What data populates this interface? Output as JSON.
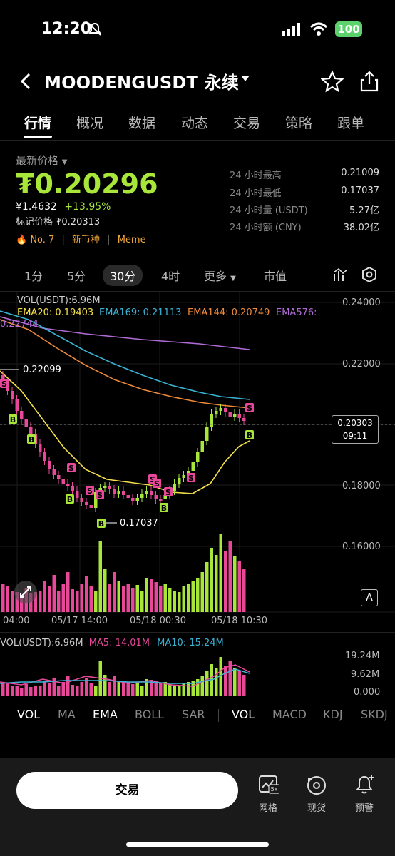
{
  "status": {
    "time": "12:20",
    "battery": "100"
  },
  "header": {
    "title": "MOODENGUSDT 永续"
  },
  "tabs": [
    "行情",
    "概况",
    "数据",
    "动态",
    "交易",
    "策略",
    "跟单"
  ],
  "price": {
    "label": "最新价格",
    "value": "₮0.20296",
    "cny": "¥1.4632",
    "change": "+13.95%",
    "mark": "标记价格 ₮0.20313",
    "rank": "No. 7",
    "tag1": "新币种",
    "tag2": "Meme"
  },
  "stats": [
    {
      "label": "24 小时最高",
      "value": "0.21009"
    },
    {
      "label": "24 小时最低",
      "value": "0.17037"
    },
    {
      "label": "24 小时量 (USDT)",
      "value": "5.27亿"
    },
    {
      "label": "24 小时额 (CNY)",
      "value": "38.02亿"
    }
  ],
  "intervals": {
    "i1": "1分",
    "i5": "5分",
    "i30": "30分",
    "i4h": "4时",
    "more": "更多",
    "mcap": "市值"
  },
  "chart": {
    "vol_label": "VOL(USDT):6.96M",
    "ema20": "EMA20: 0.19403",
    "ema169": "EMA169: 0.21113",
    "ema144": "EMA144: 0.20749",
    "ema576": "EMA576:",
    "ema576_val": "0.22744",
    "high_label": "0.22099",
    "low_label": "0.17037",
    "current_price": "0.20303",
    "countdown": "09:11",
    "y_ticks": [
      "0.24000",
      "0.22000",
      "0.20000",
      "0.18000",
      "0.16000"
    ],
    "x_ticks": [
      "04:00",
      "05/17 14:00",
      "05/18 00:30",
      "05/18 10:30"
    ],
    "vol_panel_label": "VOL(USDT):6.96M",
    "ma5": "MA5: 14.01M",
    "ma10": "MA10: 15.24M",
    "vol_ticks": [
      "19.24M",
      "9.62M",
      "0.000"
    ],
    "buy": "B",
    "sell": "S",
    "annot_box": "A"
  },
  "indicators": [
    "VOL",
    "MA",
    "EMA",
    "BOLL",
    "SAR",
    "VOL",
    "MACD",
    "KDJ",
    "SKDJ"
  ],
  "bottom": {
    "trade": "交易",
    "grid": "网格",
    "spot": "现货",
    "alert": "预警",
    "grid_badge": "5x"
  },
  "colors": {
    "up": "#a8e63a",
    "down": "#e8479a",
    "ema20": "#f5e04a",
    "ema169": "#3bb3d6",
    "ema144": "#f08a3a",
    "ema576": "#b06bd6"
  }
}
